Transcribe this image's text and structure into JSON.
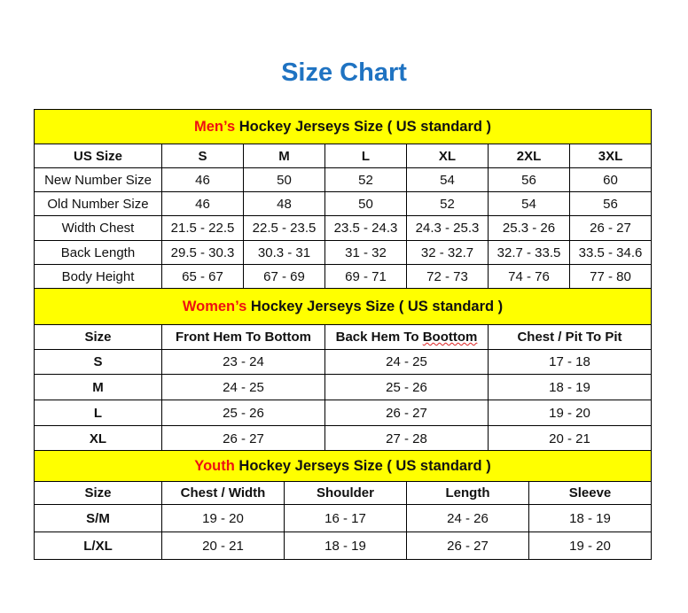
{
  "title": "Size Chart",
  "colors": {
    "title": "#1f73c2",
    "header_bg": "#ffff00",
    "highlight": "#ee1111"
  },
  "mens": {
    "highlight": "Men’s",
    "title_rest": " Hockey Jerseys Size ( US standard )",
    "columns": [
      "US Size",
      "S",
      "M",
      "L",
      "XL",
      "2XL",
      "3XL"
    ],
    "rows": [
      [
        "New Number Size",
        "46",
        "50",
        "52",
        "54",
        "56",
        "60"
      ],
      [
        "Old Number Size",
        "46",
        "48",
        "50",
        "52",
        "54",
        "56"
      ],
      [
        "Width Chest",
        "21.5 - 22.5",
        "22.5 - 23.5",
        "23.5 - 24.3",
        "24.3 - 25.3",
        "25.3 - 26",
        "26 - 27"
      ],
      [
        "Back Length",
        "29.5 - 30.3",
        "30.3 - 31",
        "31 - 32",
        "32 - 32.7",
        "32.7 - 33.5",
        "33.5 - 34.6"
      ],
      [
        "Body Height",
        "65 - 67",
        "67 - 69",
        "69 - 71",
        "72 - 73",
        "74 - 76",
        "77 - 80"
      ]
    ]
  },
  "womens": {
    "highlight": "Women’s",
    "title_rest": " Hockey Jerseys Size ( US standard )",
    "columns": [
      "Size",
      "Front Hem To Bottom",
      "Back Hem To Boottom",
      "Chest / Pit To Pit"
    ],
    "rows": [
      [
        "S",
        "23 - 24",
        "24 - 25",
        "17 - 18"
      ],
      [
        "M",
        "24 - 25",
        "25 - 26",
        "18 - 19"
      ],
      [
        "L",
        "25 - 26",
        "26 - 27",
        "19 - 20"
      ],
      [
        "XL",
        "26 - 27",
        "27 - 28",
        "20 - 21"
      ]
    ]
  },
  "youth": {
    "highlight": "Youth",
    "title_rest": " Hockey Jerseys Size ( US standard )",
    "columns": [
      "Size",
      "Chest / Width",
      "Shoulder",
      "Length",
      "Sleeve"
    ],
    "rows": [
      [
        "S/M",
        "19 - 20",
        "16 - 17",
        "24 - 26",
        "18 - 19"
      ],
      [
        "L/XL",
        "20 - 21",
        "18 - 19",
        "26 - 27",
        "19 - 20"
      ]
    ]
  }
}
